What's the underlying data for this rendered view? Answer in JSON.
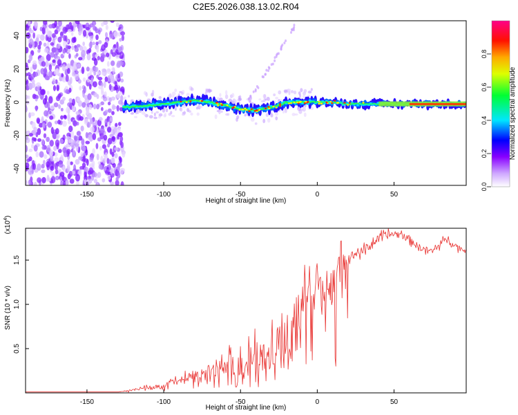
{
  "title": "C2E5.2026.038.13.02.R04",
  "chart_data": [
    {
      "type": "heatmap",
      "title": "C2E5.2026.038.13.02.R04",
      "xlabel": "Height of straight line (km)",
      "ylabel": "Frequency (Hz)",
      "xlim": [
        -190,
        97
      ],
      "ylim": [
        -50,
        49
      ],
      "xticks": [
        -150,
        -100,
        -50,
        0,
        50
      ],
      "yticks": [
        -40,
        -20,
        0,
        20,
        40
      ],
      "noise_region_x": [
        -190,
        -126
      ],
      "ridge": {
        "x": [
          -126,
          -110,
          -100,
          -90,
          -80,
          -70,
          -60,
          -50,
          -40,
          -30,
          -25,
          -20,
          -10,
          0,
          10,
          20,
          40,
          60,
          80,
          97
        ],
        "freq": [
          -3,
          -2,
          -1,
          0,
          1,
          0,
          -2,
          -4,
          -5,
          -3,
          -2,
          0,
          0,
          0,
          0,
          -1,
          -1,
          -1,
          -1,
          -1
        ]
      },
      "colorbar": {
        "label": "Normalized spectral amplitude",
        "range": [
          0.0,
          1.0
        ],
        "ticks": [
          "0.0",
          "0.2",
          "0.4",
          "0.6",
          "0.8"
        ],
        "colors": [
          "#ffffff",
          "#8800ff",
          "#0000ff",
          "#00ffff",
          "#00ff00",
          "#ffff00",
          "#ff8800",
          "#ff0000",
          "#ff0099"
        ]
      }
    },
    {
      "type": "line",
      "title": "",
      "xlabel": "Height of straight line (km)",
      "ylabel": "SNR (10 * v/v)",
      "yscale_label": "(x10",
      "yscale_exp": "4",
      "xlim": [
        -190,
        97
      ],
      "ylim": [
        0,
        1.86
      ],
      "xticks": [
        -150,
        -100,
        -50,
        0,
        50
      ],
      "yticks": [
        "0.5",
        "1.0",
        "1.5"
      ],
      "ytick_values": [
        0.5,
        1.0,
        1.5
      ],
      "color": "#e8302e",
      "series": [
        {
          "name": "SNR",
          "x": [
            -190,
            -130,
            -125,
            -120,
            -115,
            -110,
            -105,
            -100,
            -95,
            -90,
            -85,
            -80,
            -75,
            -70,
            -65,
            -60,
            -55,
            -50,
            -45,
            -40,
            -35,
            -30,
            -25,
            -20,
            -15,
            -12,
            -10,
            -8,
            -5,
            0,
            5,
            8,
            10,
            12,
            15,
            20,
            25,
            30,
            35,
            40,
            45,
            50,
            55,
            60,
            65,
            70,
            75,
            80,
            85,
            90,
            97
          ],
          "values": [
            0.01,
            0.01,
            0.02,
            0.04,
            0.06,
            0.06,
            0.07,
            0.08,
            0.12,
            0.14,
            0.16,
            0.2,
            0.2,
            0.24,
            0.28,
            0.3,
            0.32,
            0.33,
            0.36,
            0.4,
            0.43,
            0.5,
            0.58,
            0.68,
            0.8,
            0.9,
            1.0,
            1.05,
            1.12,
            1.15,
            1.18,
            1.2,
            1.25,
            1.25,
            1.42,
            1.52,
            1.58,
            1.6,
            1.68,
            1.74,
            1.78,
            1.8,
            1.78,
            1.74,
            1.66,
            1.62,
            1.6,
            1.68,
            1.75,
            1.66,
            1.6
          ]
        }
      ],
      "noise_amplitude": [
        {
          "x": -130,
          "amp": 0.0
        },
        {
          "x": -100,
          "amp": 0.05
        },
        {
          "x": -70,
          "amp": 0.15
        },
        {
          "x": -40,
          "amp": 0.35
        },
        {
          "x": -15,
          "amp": 0.5
        },
        {
          "x": 0,
          "amp": 0.35
        },
        {
          "x": 12,
          "amp": 0.45
        },
        {
          "x": 20,
          "amp": 0.1
        },
        {
          "x": 97,
          "amp": 0.06
        }
      ]
    }
  ]
}
